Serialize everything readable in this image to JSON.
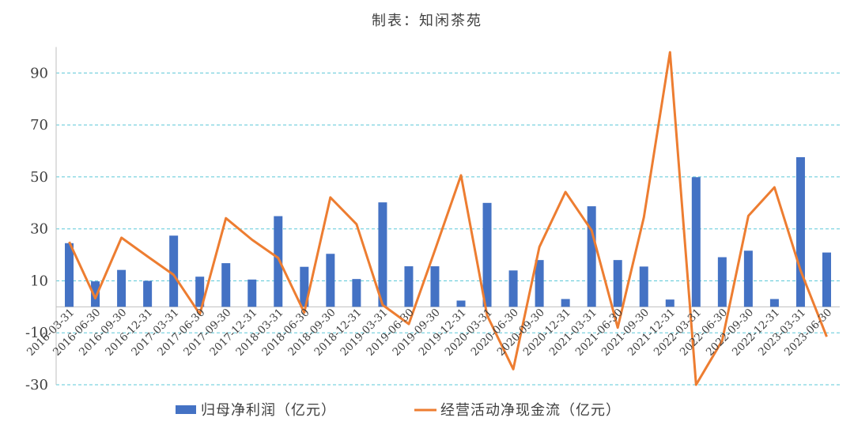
{
  "chart_data": {
    "type": "bar+line",
    "title": "制表：知闲茶苑",
    "categories": [
      "2016-03-31",
      "2016-06-30",
      "2016-09-30",
      "2016-12-31",
      "2017-03-31",
      "2017-06-30",
      "2017-09-30",
      "2017-12-31",
      "2018-03-31",
      "2018-06-30",
      "2018-09-30",
      "2018-12-31",
      "2019-03-31",
      "2019-06-30",
      "2019-09-30",
      "2019-12-31",
      "2020-03-31",
      "2020-06-30",
      "2020-09-30",
      "2020-12-31",
      "2021-03-31",
      "2021-06-30",
      "2021-09-30",
      "2021-12-31",
      "2022-03-31",
      "2022-06-30",
      "2022-09-30",
      "2022-12-31",
      "2023-03-31",
      "2023-06-30"
    ],
    "series": [
      {
        "name": "归母净利润（亿元）",
        "type": "bar",
        "color": "#4472C4",
        "values": [
          24.5,
          9.8,
          14.2,
          10.0,
          27.4,
          11.6,
          16.8,
          10.5,
          34.9,
          15.4,
          20.4,
          10.7,
          40.2,
          15.6,
          15.6,
          2.4,
          40.0,
          14.0,
          18.0,
          3.0,
          38.7,
          18.0,
          15.5,
          2.8,
          49.9,
          19.1,
          21.6,
          3.0,
          57.6,
          20.9
        ]
      },
      {
        "name": "经营活动净现金流（亿元）",
        "type": "line",
        "color": "#ED7D31",
        "values": [
          25.0,
          3.3,
          26.6,
          19.4,
          12.3,
          -2.8,
          34.1,
          25.8,
          18.8,
          -2.2,
          42.1,
          31.8,
          0.7,
          -6.6,
          21.8,
          50.6,
          -3.3,
          -24.0,
          23.0,
          44.2,
          29.4,
          -8.0,
          34.5,
          98.0,
          -30.0,
          -13.0,
          35.0,
          46.0,
          14.0,
          -11.5
        ]
      }
    ],
    "ylim": [
      -30,
      100
    ],
    "yticks": [
      -30,
      -10,
      10,
      30,
      50,
      70,
      90
    ],
    "grid": true,
    "legend": "bottom"
  }
}
